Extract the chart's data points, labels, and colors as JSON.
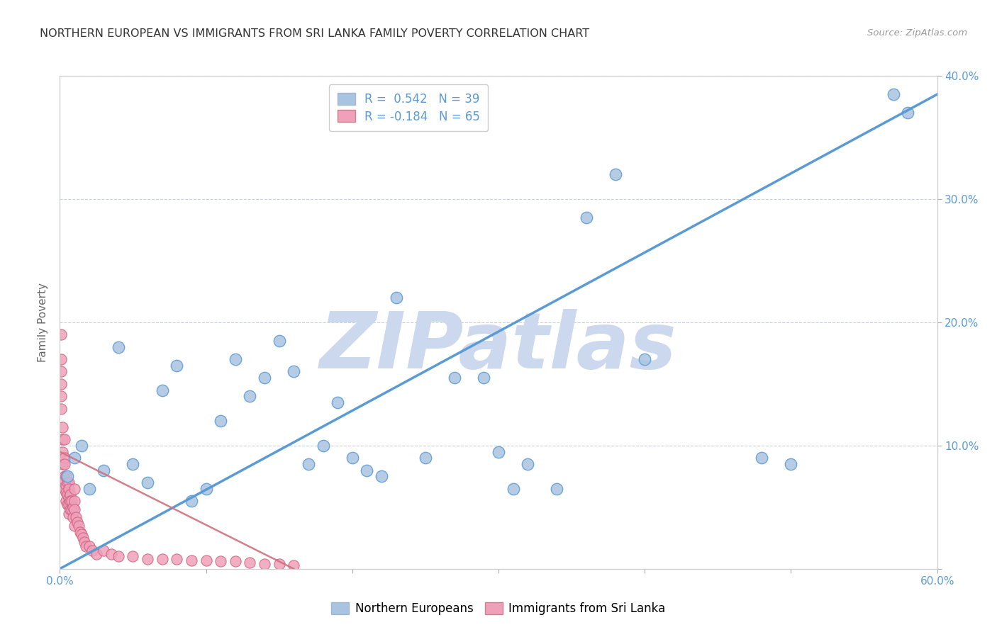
{
  "title": "NORTHERN EUROPEAN VS IMMIGRANTS FROM SRI LANKA FAMILY POVERTY CORRELATION CHART",
  "source": "Source: ZipAtlas.com",
  "xlabel": "",
  "ylabel": "Family Poverty",
  "xlim": [
    0.0,
    0.6
  ],
  "ylim": [
    0.0,
    0.4
  ],
  "xticks": [
    0.0,
    0.1,
    0.2,
    0.3,
    0.4,
    0.5,
    0.6
  ],
  "xtick_labels": [
    "0.0%",
    "",
    "",
    "",
    "",
    "",
    "60.0%"
  ],
  "yticks": [
    0.0,
    0.1,
    0.2,
    0.3,
    0.4
  ],
  "ytick_labels_right": [
    "",
    "10.0%",
    "20.0%",
    "30.0%",
    "40.0%"
  ],
  "blue_R": 0.542,
  "blue_N": 39,
  "pink_R": -0.184,
  "pink_N": 65,
  "blue_color": "#a8c4e0",
  "pink_color": "#f0a0b8",
  "blue_line_color": "#5b9bd5",
  "pink_line_color": "#d07080",
  "watermark": "ZIPatlas",
  "watermark_color": "#ccd8ee",
  "legend_label_blue": "Northern Europeans",
  "legend_label_pink": "Immigrants from Sri Lanka",
  "blue_scatter_x": [
    0.005,
    0.01,
    0.015,
    0.02,
    0.03,
    0.04,
    0.05,
    0.06,
    0.07,
    0.08,
    0.09,
    0.1,
    0.11,
    0.12,
    0.13,
    0.14,
    0.15,
    0.16,
    0.17,
    0.18,
    0.19,
    0.2,
    0.21,
    0.22,
    0.23,
    0.25,
    0.27,
    0.29,
    0.3,
    0.31,
    0.32,
    0.34,
    0.36,
    0.38,
    0.4,
    0.48,
    0.5,
    0.57,
    0.58
  ],
  "blue_scatter_y": [
    0.075,
    0.09,
    0.1,
    0.065,
    0.08,
    0.18,
    0.085,
    0.07,
    0.145,
    0.165,
    0.055,
    0.065,
    0.12,
    0.17,
    0.14,
    0.155,
    0.185,
    0.16,
    0.085,
    0.1,
    0.135,
    0.09,
    0.08,
    0.075,
    0.22,
    0.09,
    0.155,
    0.155,
    0.095,
    0.065,
    0.085,
    0.065,
    0.285,
    0.32,
    0.17,
    0.09,
    0.085,
    0.385,
    0.37
  ],
  "pink_scatter_x": [
    0.001,
    0.001,
    0.001,
    0.001,
    0.001,
    0.001,
    0.002,
    0.002,
    0.002,
    0.002,
    0.003,
    0.003,
    0.003,
    0.003,
    0.003,
    0.003,
    0.004,
    0.004,
    0.004,
    0.004,
    0.005,
    0.005,
    0.005,
    0.006,
    0.006,
    0.006,
    0.006,
    0.006,
    0.007,
    0.007,
    0.007,
    0.008,
    0.008,
    0.009,
    0.009,
    0.01,
    0.01,
    0.01,
    0.01,
    0.011,
    0.012,
    0.013,
    0.014,
    0.015,
    0.016,
    0.017,
    0.018,
    0.02,
    0.022,
    0.025,
    0.03,
    0.035,
    0.04,
    0.05,
    0.06,
    0.07,
    0.08,
    0.09,
    0.1,
    0.11,
    0.12,
    0.13,
    0.14,
    0.15,
    0.16
  ],
  "pink_scatter_y": [
    0.19,
    0.17,
    0.16,
    0.15,
    0.14,
    0.13,
    0.115,
    0.105,
    0.095,
    0.085,
    0.105,
    0.09,
    0.085,
    0.075,
    0.072,
    0.065,
    0.075,
    0.068,
    0.062,
    0.055,
    0.07,
    0.06,
    0.052,
    0.07,
    0.065,
    0.058,
    0.052,
    0.045,
    0.06,
    0.055,
    0.048,
    0.055,
    0.048,
    0.05,
    0.042,
    0.065,
    0.055,
    0.048,
    0.035,
    0.042,
    0.038,
    0.035,
    0.03,
    0.028,
    0.025,
    0.022,
    0.018,
    0.018,
    0.015,
    0.012,
    0.015,
    0.012,
    0.01,
    0.01,
    0.008,
    0.008,
    0.008,
    0.007,
    0.007,
    0.006,
    0.006,
    0.005,
    0.004,
    0.004,
    0.003
  ],
  "blue_line_x0": 0.0,
  "blue_line_y0": 0.0,
  "blue_line_x1": 0.6,
  "blue_line_y1": 0.385,
  "pink_line_x0": 0.0,
  "pink_line_y0": 0.095,
  "pink_line_x1": 0.16,
  "pink_line_y1": 0.0
}
